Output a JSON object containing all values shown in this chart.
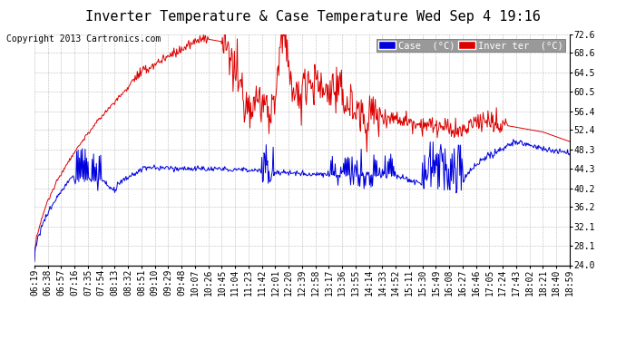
{
  "title": "Inverter Temperature & Case Temperature Wed Sep 4 19:16",
  "copyright": "Copyright 2013 Cartronics.com",
  "legend_case_label": "Case  (°C)",
  "legend_inverter_label": "Inver ter  (°C)",
  "case_color": "#0000dd",
  "inverter_color": "#dd0000",
  "background_color": "#ffffff",
  "plot_bg_color": "#ffffff",
  "grid_color": "#aaaaaa",
  "yticks": [
    24.0,
    28.1,
    32.1,
    36.2,
    40.2,
    44.3,
    48.3,
    52.4,
    56.4,
    60.5,
    64.5,
    68.6,
    72.6
  ],
  "ylim": [
    24.0,
    72.6
  ],
  "title_fontsize": 11,
  "copyright_fontsize": 7,
  "tick_fontsize": 7,
  "legend_fontsize": 7.5
}
